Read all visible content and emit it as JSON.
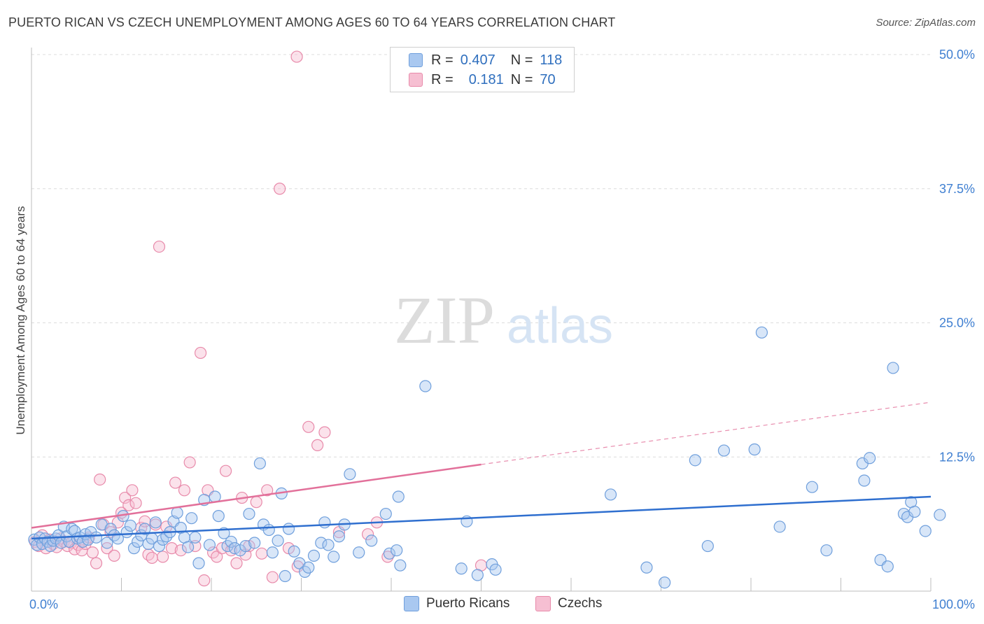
{
  "title": "PUERTO RICAN VS CZECH UNEMPLOYMENT AMONG AGES 60 TO 64 YEARS CORRELATION CHART",
  "source": "Source: ZipAtlas.com",
  "watermark": {
    "zip": "ZIP",
    "atlas": "atlas"
  },
  "legend": {
    "rows": [
      {
        "r_label": "R =",
        "r_value": "0.407",
        "n_label": "N =",
        "n_value": "118",
        "color": "#a9c8f0",
        "border": "#6f9fdc"
      },
      {
        "r_label": "R =",
        "r_value": "0.181",
        "n_label": "N =",
        "n_value": "70",
        "color": "#f6bfd2",
        "border": "#e88aaa"
      }
    ]
  },
  "bottom_legend": [
    {
      "label": "Puerto Ricans",
      "color": "#a9c8f0",
      "border": "#6f9fdc"
    },
    {
      "label": "Czechs",
      "color": "#f6bfd2",
      "border": "#e88aaa"
    }
  ],
  "chart_data": {
    "type": "scatter",
    "title": "PUERTO RICAN VS CZECH UNEMPLOYMENT AMONG AGES 60 TO 64 YEARS CORRELATION CHART",
    "xlabel": "",
    "ylabel": "Unemployment Among Ages 60 to 64 years",
    "xlim": [
      0,
      100
    ],
    "ylim": [
      0,
      50
    ],
    "x_tick_labels": [
      "0.0%",
      "100.0%"
    ],
    "y_ticks": [
      12.5,
      25.0,
      37.5,
      50.0
    ],
    "y_tick_labels": [
      "12.5%",
      "25.0%",
      "37.5%",
      "50.0%"
    ],
    "grid": "dashed horizontal",
    "series": [
      {
        "name": "Puerto Ricans",
        "color": "#6f9fdc",
        "fill": "#a9c8f0",
        "trend": {
          "x": [
            0,
            100
          ],
          "y": [
            4.9,
            8.8
          ],
          "style": "solid",
          "color": "#2f6fcf"
        },
        "points": [
          [
            0.3,
            4.8
          ],
          [
            0.6,
            4.3
          ],
          [
            0.9,
            5.0
          ],
          [
            1.2,
            4.4
          ],
          [
            1.5,
            4.9
          ],
          [
            1.8,
            4.6
          ],
          [
            2.1,
            4.2
          ],
          [
            2.4,
            4.7
          ],
          [
            2.7,
            4.9
          ],
          [
            3.0,
            5.2
          ],
          [
            3.3,
            4.5
          ],
          [
            3.6,
            6.0
          ],
          [
            3.9,
            5.1
          ],
          [
            4.2,
            4.6
          ],
          [
            4.5,
            5.8
          ],
          [
            4.8,
            5.6
          ],
          [
            5.1,
            4.9
          ],
          [
            5.4,
            5.0
          ],
          [
            5.7,
            4.6
          ],
          [
            6.0,
            5.3
          ],
          [
            6.3,
            4.8
          ],
          [
            6.6,
            5.5
          ],
          [
            7.2,
            5.0
          ],
          [
            7.8,
            6.2
          ],
          [
            8.4,
            4.5
          ],
          [
            8.8,
            5.8
          ],
          [
            9.2,
            5.2
          ],
          [
            9.6,
            4.9
          ],
          [
            10.2,
            7.0
          ],
          [
            10.6,
            5.5
          ],
          [
            11.0,
            6.1
          ],
          [
            11.4,
            4.0
          ],
          [
            11.8,
            4.6
          ],
          [
            12.2,
            5.2
          ],
          [
            12.6,
            5.8
          ],
          [
            13.0,
            4.4
          ],
          [
            13.4,
            4.9
          ],
          [
            13.8,
            6.4
          ],
          [
            14.2,
            4.2
          ],
          [
            14.6,
            4.8
          ],
          [
            15.0,
            5.1
          ],
          [
            15.4,
            5.5
          ],
          [
            15.8,
            6.5
          ],
          [
            16.2,
            7.3
          ],
          [
            16.6,
            5.9
          ],
          [
            17.0,
            5.0
          ],
          [
            17.4,
            4.1
          ],
          [
            17.8,
            6.8
          ],
          [
            18.2,
            5.0
          ],
          [
            18.6,
            2.6
          ],
          [
            19.2,
            8.5
          ],
          [
            19.8,
            4.3
          ],
          [
            20.4,
            8.8
          ],
          [
            20.8,
            7.0
          ],
          [
            21.4,
            5.4
          ],
          [
            21.8,
            4.2
          ],
          [
            22.2,
            4.6
          ],
          [
            22.6,
            4.0
          ],
          [
            23.2,
            3.8
          ],
          [
            23.8,
            4.2
          ],
          [
            24.2,
            7.2
          ],
          [
            24.8,
            4.5
          ],
          [
            25.4,
            11.9
          ],
          [
            25.8,
            6.2
          ],
          [
            26.4,
            5.7
          ],
          [
            26.8,
            3.6
          ],
          [
            27.4,
            4.7
          ],
          [
            27.8,
            9.1
          ],
          [
            28.2,
            1.4
          ],
          [
            28.6,
            5.8
          ],
          [
            29.2,
            3.7
          ],
          [
            29.8,
            2.6
          ],
          [
            30.4,
            1.8
          ],
          [
            30.8,
            2.2
          ],
          [
            31.4,
            3.3
          ],
          [
            32.2,
            4.5
          ],
          [
            32.6,
            6.4
          ],
          [
            33.0,
            4.3
          ],
          [
            33.6,
            3.2
          ],
          [
            34.2,
            5.1
          ],
          [
            34.8,
            6.2
          ],
          [
            35.4,
            10.9
          ],
          [
            36.4,
            3.6
          ],
          [
            37.8,
            4.7
          ],
          [
            39.4,
            7.2
          ],
          [
            39.8,
            3.5
          ],
          [
            40.6,
            3.8
          ],
          [
            40.8,
            8.8
          ],
          [
            41.0,
            2.4
          ],
          [
            43.8,
            19.1
          ],
          [
            47.8,
            2.1
          ],
          [
            48.4,
            6.5
          ],
          [
            49.6,
            1.5
          ],
          [
            51.2,
            2.5
          ],
          [
            51.6,
            2.0
          ],
          [
            64.4,
            9.0
          ],
          [
            68.4,
            2.2
          ],
          [
            70.4,
            0.8
          ],
          [
            73.8,
            12.2
          ],
          [
            75.2,
            4.2
          ],
          [
            77.0,
            13.1
          ],
          [
            80.4,
            13.2
          ],
          [
            81.2,
            24.1
          ],
          [
            83.2,
            6.0
          ],
          [
            86.8,
            9.7
          ],
          [
            88.4,
            3.8
          ],
          [
            92.4,
            11.9
          ],
          [
            92.6,
            10.3
          ],
          [
            93.2,
            12.4
          ],
          [
            94.4,
            2.9
          ],
          [
            95.2,
            2.3
          ],
          [
            95.8,
            20.8
          ],
          [
            97.0,
            7.2
          ],
          [
            97.4,
            6.9
          ],
          [
            97.8,
            8.3
          ],
          [
            98.2,
            7.4
          ],
          [
            99.4,
            5.6
          ],
          [
            101.0,
            7.1
          ]
        ]
      },
      {
        "name": "Czechs",
        "color": "#e88aaa",
        "fill": "#f6bfd2",
        "trend": {
          "x": [
            0,
            50
          ],
          "y": [
            5.9,
            11.8
          ],
          "extended": {
            "x": [
              50,
              100
            ],
            "y": [
              11.8,
              17.6
            ]
          },
          "style": "solid then dashed",
          "color": "#e2709a"
        },
        "points": [
          [
            0.4,
            4.6
          ],
          [
            0.8,
            4.2
          ],
          [
            1.2,
            5.2
          ],
          [
            1.6,
            4.0
          ],
          [
            2.0,
            4.8
          ],
          [
            2.4,
            4.4
          ],
          [
            2.8,
            4.1
          ],
          [
            3.2,
            4.9
          ],
          [
            3.6,
            4.6
          ],
          [
            4.0,
            4.2
          ],
          [
            4.4,
            4.5
          ],
          [
            4.8,
            3.9
          ],
          [
            5.2,
            4.3
          ],
          [
            5.6,
            3.8
          ],
          [
            6.0,
            4.4
          ],
          [
            6.4,
            5.0
          ],
          [
            6.8,
            3.6
          ],
          [
            7.2,
            2.6
          ],
          [
            7.6,
            10.4
          ],
          [
            8.0,
            6.2
          ],
          [
            8.4,
            4.0
          ],
          [
            8.8,
            5.5
          ],
          [
            9.2,
            3.3
          ],
          [
            9.6,
            6.4
          ],
          [
            10.0,
            7.3
          ],
          [
            10.4,
            8.7
          ],
          [
            10.8,
            8.0
          ],
          [
            11.2,
            9.4
          ],
          [
            11.6,
            8.2
          ],
          [
            12.2,
            5.9
          ],
          [
            12.6,
            6.5
          ],
          [
            13.0,
            3.4
          ],
          [
            13.4,
            3.1
          ],
          [
            13.8,
            6.2
          ],
          [
            14.2,
            32.1
          ],
          [
            14.6,
            3.2
          ],
          [
            15.0,
            6.0
          ],
          [
            15.6,
            4.0
          ],
          [
            16.0,
            10.1
          ],
          [
            16.6,
            3.8
          ],
          [
            17.0,
            9.4
          ],
          [
            17.6,
            12.0
          ],
          [
            18.2,
            4.2
          ],
          [
            18.8,
            22.2
          ],
          [
            19.2,
            1.0
          ],
          [
            19.6,
            9.4
          ],
          [
            20.2,
            3.6
          ],
          [
            20.6,
            3.2
          ],
          [
            21.2,
            4.0
          ],
          [
            21.6,
            11.2
          ],
          [
            22.2,
            3.8
          ],
          [
            22.8,
            2.6
          ],
          [
            23.4,
            8.7
          ],
          [
            23.8,
            3.4
          ],
          [
            24.2,
            4.2
          ],
          [
            25.0,
            8.3
          ],
          [
            25.6,
            3.5
          ],
          [
            26.2,
            9.4
          ],
          [
            26.8,
            1.3
          ],
          [
            27.6,
            37.5
          ],
          [
            28.6,
            4.0
          ],
          [
            29.6,
            2.3
          ],
          [
            30.8,
            15.3
          ],
          [
            31.8,
            13.6
          ],
          [
            32.6,
            14.8
          ],
          [
            34.2,
            5.5
          ],
          [
            37.4,
            5.3
          ],
          [
            38.4,
            6.4
          ],
          [
            39.6,
            3.2
          ],
          [
            50.0,
            2.4
          ]
        ]
      }
    ],
    "extra_points": {
      "Czechs": [
        [
          29.5,
          49.8
        ]
      ],
      "Puerto Ricans": []
    }
  }
}
